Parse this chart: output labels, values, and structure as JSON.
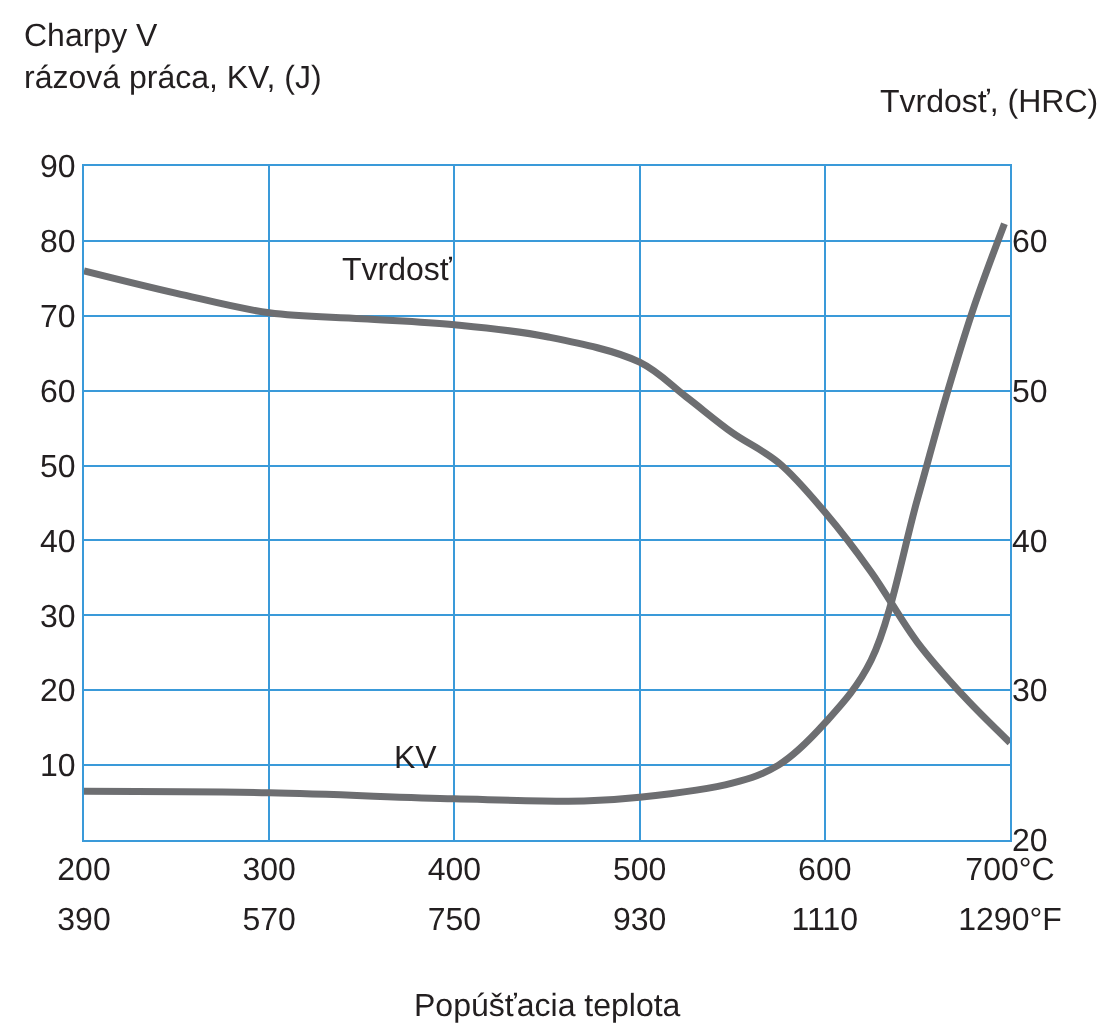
{
  "chart_data": {
    "type": "line",
    "ylabel": "Charpy V\nrázová práca, KV, (J)",
    "y2label": "Tvrdosť, (HRC)",
    "xlabel": "Popúšťacia teplota",
    "xlim": [
      200,
      700
    ],
    "xticks": [
      200,
      300,
      400,
      500,
      600,
      {
        "value": 700,
        "label": "700°C"
      }
    ],
    "x2lim": [
      390,
      1290
    ],
    "x2ticks": [
      390,
      570,
      750,
      930,
      1110,
      {
        "value": 1290,
        "label": "1290°F"
      }
    ],
    "ylim": [
      0,
      90
    ],
    "yticks": [
      10,
      20,
      30,
      40,
      50,
      60,
      70,
      80,
      90
    ],
    "y2lim": [
      20,
      65
    ],
    "y2ticks": [
      20,
      30,
      40,
      50,
      60
    ],
    "grid": true,
    "series": [
      {
        "color": "#6d6e71",
        "axis": "y2",
        "x": [
          200,
          250,
          300,
          350,
          400,
          450,
          500,
          525,
          550,
          575,
          600,
          625,
          650,
          675,
          700
        ],
        "values": [
          58,
          56.5,
          55.2,
          54.8,
          54.4,
          53.6,
          51.9,
          49.6,
          47.2,
          45.2,
          41.9,
          37.9,
          33.2,
          29.6,
          26.5
        ]
      },
      {
        "color": "#6d6e71",
        "x": [
          200,
          300,
          400,
          470,
          500,
          550,
          575,
          600,
          625,
          650,
          665,
          680,
          697
        ],
        "values": [
          6.5,
          6.3,
          5.5,
          5.2,
          5.7,
          7.6,
          10,
          15.6,
          24,
          45.5,
          58.8,
          70.8,
          82.3
        ]
      }
    ],
    "annotations": [
      "Tvrdosť",
      "KV"
    ]
  }
}
